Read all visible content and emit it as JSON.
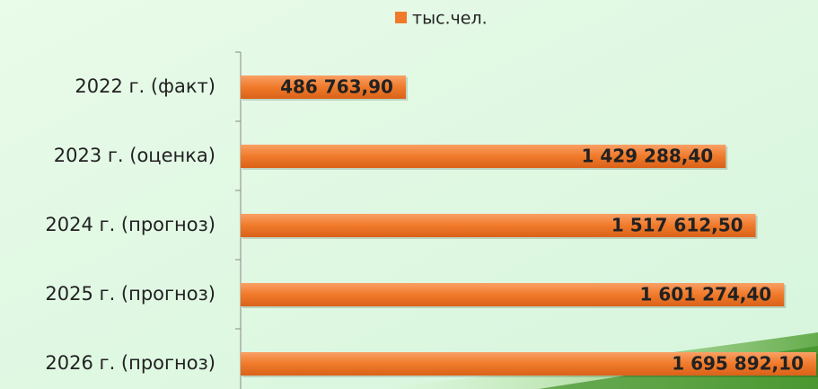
{
  "chart_data": {
    "type": "bar",
    "orientation": "horizontal",
    "categories": [
      "2022 г. (факт)",
      "2023 г. (оценка)",
      "2024 г. (прогноз)",
      "2025 г. (прогноз)",
      "2026 г. (прогноз)"
    ],
    "series": [
      {
        "name": "тыс.чел.",
        "color": "#f07a2a",
        "values": [
          486763.9,
          1429288.4,
          1517612.5,
          1601274.4,
          1695892.1
        ],
        "value_labels": [
          "486 763,90",
          "1 429 288,40",
          "1 517 612,50",
          "1 601 274,40",
          "1 695 892,10"
        ]
      }
    ],
    "legend": "top"
  }
}
